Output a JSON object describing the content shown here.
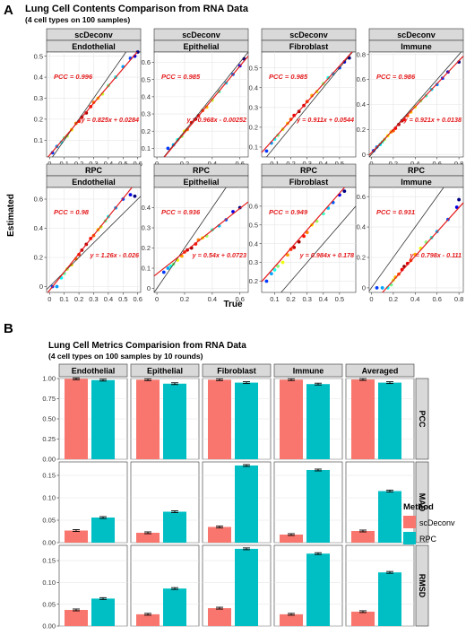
{
  "panelA": {
    "label": "A",
    "title": "Lung Cell Contents Comparison from RNA Data",
    "subtitle": "(4 cell types on 100 samples)",
    "xlabel": "True",
    "ylabel": "Estimated"
  },
  "panelB": {
    "label": "B",
    "title": "Lung Cell Metrics Comparision from RNA Data",
    "subtitle": "(4 cell types on 100 samples by 10 rounds)"
  },
  "legend": {
    "title": "Method",
    "items": [
      {
        "label": "scDeconv",
        "color": "#F8766D"
      },
      {
        "label": "RPC",
        "color": "#00BFC4"
      }
    ]
  },
  "chart_data": [
    {
      "type": "scatter",
      "method": "scDeconv",
      "cell_type": "Endothelial",
      "x_ticks": [
        0,
        0.1,
        0.2,
        0.3,
        0.4,
        0.5,
        0.6
      ],
      "y_ticks": [
        0.1,
        0.2,
        0.3,
        0.4,
        0.5
      ],
      "xlim": [
        -0.02,
        0.62
      ],
      "ylim": [
        0.02,
        0.52
      ],
      "pcc": "PCC = 0.996",
      "equation": "y = 0.825x + 0.0284",
      "fit": {
        "slope": 0.825,
        "intercept": 0.0284
      },
      "points": [
        [
          0.02,
          0.04
        ],
        [
          0.05,
          0.07
        ],
        [
          0.08,
          0.09
        ],
        [
          0.1,
          0.11
        ],
        [
          0.12,
          0.12
        ],
        [
          0.15,
          0.15
        ],
        [
          0.18,
          0.18
        ],
        [
          0.2,
          0.19
        ],
        [
          0.22,
          0.21
        ],
        [
          0.25,
          0.23
        ],
        [
          0.28,
          0.26
        ],
        [
          0.3,
          0.28
        ],
        [
          0.33,
          0.3
        ],
        [
          0.36,
          0.32
        ],
        [
          0.4,
          0.36
        ],
        [
          0.45,
          0.4
        ],
        [
          0.5,
          0.45
        ],
        [
          0.55,
          0.49
        ],
        [
          0.58,
          0.5
        ],
        [
          0.6,
          0.52
        ]
      ]
    },
    {
      "type": "scatter",
      "method": "scDeconv",
      "cell_type": "Epithelial",
      "x_ticks": [
        0,
        0.2,
        0.4,
        0.6
      ],
      "y_ticks": [
        0.1,
        0.2,
        0.3,
        0.4,
        0.5,
        0.6
      ],
      "xlim": [
        -0.02,
        0.66
      ],
      "ylim": [
        0.05,
        0.66
      ],
      "pcc": "PCC = 0.985",
      "equation": "y = 0.968x - 0.00252",
      "fit": {
        "slope": 0.968,
        "intercept": -0.00252
      },
      "points": [
        [
          0.08,
          0.1
        ],
        [
          0.12,
          0.12
        ],
        [
          0.15,
          0.15
        ],
        [
          0.18,
          0.17
        ],
        [
          0.2,
          0.2
        ],
        [
          0.22,
          0.21
        ],
        [
          0.25,
          0.25
        ],
        [
          0.28,
          0.27
        ],
        [
          0.3,
          0.29
        ],
        [
          0.33,
          0.32
        ],
        [
          0.36,
          0.34
        ],
        [
          0.4,
          0.38
        ],
        [
          0.45,
          0.43
        ],
        [
          0.5,
          0.48
        ],
        [
          0.55,
          0.53
        ],
        [
          0.6,
          0.58
        ],
        [
          0.63,
          0.62
        ]
      ]
    },
    {
      "type": "scatter",
      "method": "scDeconv",
      "cell_type": "Fibroblast",
      "x_ticks": [
        0.1,
        0.2,
        0.3,
        0.4,
        0.5
      ],
      "y_ticks": [
        0.1,
        0.2,
        0.3,
        0.4,
        0.5
      ],
      "xlim": [
        0.02,
        0.6
      ],
      "ylim": [
        0.05,
        0.58
      ],
      "pcc": "PCC = 0.985",
      "equation": "y = 0.911x + 0.0544",
      "fit": {
        "slope": 0.911,
        "intercept": 0.0544
      },
      "points": [
        [
          0.05,
          0.08
        ],
        [
          0.08,
          0.12
        ],
        [
          0.1,
          0.14
        ],
        [
          0.12,
          0.16
        ],
        [
          0.15,
          0.19
        ],
        [
          0.18,
          0.22
        ],
        [
          0.2,
          0.24
        ],
        [
          0.22,
          0.26
        ],
        [
          0.25,
          0.28
        ],
        [
          0.28,
          0.31
        ],
        [
          0.3,
          0.33
        ],
        [
          0.33,
          0.36
        ],
        [
          0.36,
          0.38
        ],
        [
          0.4,
          0.42
        ],
        [
          0.43,
          0.45
        ],
        [
          0.46,
          0.47
        ],
        [
          0.5,
          0.5
        ],
        [
          0.53,
          0.53
        ],
        [
          0.56,
          0.55
        ]
      ]
    },
    {
      "type": "scatter",
      "method": "scDeconv",
      "cell_type": "Immune",
      "x_ticks": [
        0,
        0.2,
        0.4,
        0.6,
        0.8
      ],
      "y_ticks": [
        0,
        0.2,
        0.4,
        0.6,
        0.8
      ],
      "xlim": [
        -0.02,
        0.84
      ],
      "ylim": [
        -0.02,
        0.82
      ],
      "pcc": "PCC = 0.986",
      "equation": "y = 0.921x + 0.0138",
      "fit": {
        "slope": 0.921,
        "intercept": 0.0138
      },
      "points": [
        [
          0.02,
          0.03
        ],
        [
          0.05,
          0.06
        ],
        [
          0.08,
          0.08
        ],
        [
          0.1,
          0.1
        ],
        [
          0.12,
          0.12
        ],
        [
          0.15,
          0.15
        ],
        [
          0.18,
          0.18
        ],
        [
          0.2,
          0.19
        ],
        [
          0.22,
          0.21
        ],
        [
          0.25,
          0.24
        ],
        [
          0.28,
          0.27
        ],
        [
          0.3,
          0.28
        ],
        [
          0.33,
          0.31
        ],
        [
          0.36,
          0.34
        ],
        [
          0.4,
          0.38
        ],
        [
          0.45,
          0.43
        ],
        [
          0.5,
          0.47
        ],
        [
          0.55,
          0.52
        ],
        [
          0.6,
          0.56
        ],
        [
          0.65,
          0.61
        ],
        [
          0.7,
          0.66
        ],
        [
          0.8,
          0.74
        ]
      ]
    },
    {
      "type": "scatter",
      "method": "RPC",
      "cell_type": "Endothelial",
      "x_ticks": [
        0,
        0.1,
        0.2,
        0.3,
        0.4,
        0.5,
        0.6
      ],
      "y_ticks": [
        0,
        0.2,
        0.4,
        0.6
      ],
      "xlim": [
        -0.02,
        0.62
      ],
      "ylim": [
        -0.04,
        0.68
      ],
      "pcc": "PCC = 0.98",
      "equation": "y = 1.26x - 0.026",
      "fit": {
        "slope": 1.26,
        "intercept": -0.026
      },
      "points": [
        [
          0.02,
          0
        ],
        [
          0.05,
          0
        ],
        [
          0.08,
          0.06
        ],
        [
          0.1,
          0.09
        ],
        [
          0.12,
          0.12
        ],
        [
          0.15,
          0.15
        ],
        [
          0.18,
          0.19
        ],
        [
          0.2,
          0.22
        ],
        [
          0.22,
          0.25
        ],
        [
          0.25,
          0.29
        ],
        [
          0.28,
          0.33
        ],
        [
          0.3,
          0.35
        ],
        [
          0.33,
          0.39
        ],
        [
          0.35,
          0.41
        ],
        [
          0.38,
          0.45
        ],
        [
          0.4,
          0.48
        ],
        [
          0.45,
          0.54
        ],
        [
          0.5,
          0.6
        ],
        [
          0.55,
          0.63
        ],
        [
          0.58,
          0.62
        ]
      ]
    },
    {
      "type": "scatter",
      "method": "RPC",
      "cell_type": "Epithelial",
      "x_ticks": [
        0,
        0.2,
        0.4,
        0.6
      ],
      "y_ticks": [
        0.0,
        0.1,
        0.2,
        0.3,
        0.4
      ],
      "xlim": [
        -0.02,
        0.66
      ],
      "ylim": [
        -0.02,
        0.5
      ],
      "pcc": "PCC = 0.936",
      "equation": "y = 0.54x + 0.0723",
      "fit": {
        "slope": 0.54,
        "intercept": 0.0723
      },
      "points": [
        [
          0.05,
          0.08
        ],
        [
          0.08,
          0.1
        ],
        [
          0.1,
          0.11
        ],
        [
          0.12,
          0.12
        ],
        [
          0.15,
          0.14
        ],
        [
          0.18,
          0.16
        ],
        [
          0.2,
          0.18
        ],
        [
          0.22,
          0.19
        ],
        [
          0.25,
          0.2
        ],
        [
          0.28,
          0.22
        ],
        [
          0.3,
          0.24
        ],
        [
          0.33,
          0.25
        ],
        [
          0.36,
          0.26
        ],
        [
          0.4,
          0.29
        ],
        [
          0.45,
          0.31
        ],
        [
          0.5,
          0.34
        ],
        [
          0.55,
          0.38
        ],
        [
          0.6,
          0.4
        ]
      ]
    },
    {
      "type": "scatter",
      "method": "RPC",
      "cell_type": "Fibroblast",
      "x_ticks": [
        0.1,
        0.2,
        0.3,
        0.4,
        0.5
      ],
      "y_ticks": [
        0.2,
        0.3,
        0.4,
        0.5,
        0.6
      ],
      "xlim": [
        0.02,
        0.6
      ],
      "ylim": [
        0.14,
        0.7
      ],
      "pcc": "PCC = 0.949",
      "equation": "y = 0.984x + 0.178",
      "fit": {
        "slope": 0.984,
        "intercept": 0.178
      },
      "points": [
        [
          0.05,
          0.2
        ],
        [
          0.08,
          0.24
        ],
        [
          0.1,
          0.26
        ],
        [
          0.12,
          0.28
        ],
        [
          0.15,
          0.3
        ],
        [
          0.18,
          0.34
        ],
        [
          0.2,
          0.37
        ],
        [
          0.22,
          0.38
        ],
        [
          0.25,
          0.41
        ],
        [
          0.28,
          0.44
        ],
        [
          0.3,
          0.46
        ],
        [
          0.33,
          0.5
        ],
        [
          0.36,
          0.52
        ],
        [
          0.4,
          0.56
        ],
        [
          0.43,
          0.59
        ],
        [
          0.46,
          0.62
        ],
        [
          0.5,
          0.66
        ],
        [
          0.53,
          0.68
        ]
      ]
    },
    {
      "type": "scatter",
      "method": "RPC",
      "cell_type": "Immune",
      "x_ticks": [
        0,
        0.2,
        0.4,
        0.6,
        0.8
      ],
      "y_ticks": [
        0,
        0.2,
        0.4,
        0.6
      ],
      "xlim": [
        -0.02,
        0.84
      ],
      "ylim": [
        -0.03,
        0.66
      ],
      "pcc": "PCC = 0.931",
      "equation": "y = 0.798x - 0.111",
      "fit": {
        "slope": 0.798,
        "intercept": -0.111
      },
      "points": [
        [
          0.05,
          0
        ],
        [
          0.1,
          0
        ],
        [
          0.15,
          0
        ],
        [
          0.18,
          0.02
        ],
        [
          0.2,
          0.05
        ],
        [
          0.22,
          0.07
        ],
        [
          0.25,
          0.09
        ],
        [
          0.28,
          0.12
        ],
        [
          0.3,
          0.14
        ],
        [
          0.33,
          0.16
        ],
        [
          0.36,
          0.18
        ],
        [
          0.4,
          0.22
        ],
        [
          0.45,
          0.26
        ],
        [
          0.5,
          0.3
        ],
        [
          0.55,
          0.33
        ],
        [
          0.6,
          0.37
        ],
        [
          0.7,
          0.45
        ],
        [
          0.78,
          0.53
        ],
        [
          0.8,
          0.58
        ]
      ]
    },
    {
      "type": "bar",
      "facet_columns": [
        "Endothelial",
        "Epithelial",
        "Fibroblast",
        "Immune",
        "Averaged"
      ],
      "facet_rows": [
        "PCC",
        "MAD",
        "RMSD"
      ],
      "series": [
        {
          "name": "scDeconv",
          "color": "#F8766D",
          "values": {
            "PCC": [
              0.996,
              0.985,
              0.985,
              0.986,
              0.988
            ],
            "MAD": [
              0.027,
              0.022,
              0.035,
              0.018,
              0.026
            ],
            "RMSD": [
              0.037,
              0.027,
              0.041,
              0.027,
              0.033
            ]
          }
        },
        {
          "name": "RPC",
          "color": "#00BFC4",
          "values": {
            "PCC": [
              0.98,
              0.936,
              0.949,
              0.931,
              0.949
            ],
            "MAD": [
              0.056,
              0.069,
              0.172,
              0.162,
              0.115
            ],
            "RMSD": [
              0.063,
              0.086,
              0.177,
              0.166,
              0.123
            ]
          }
        }
      ],
      "row_axes": {
        "PCC": {
          "ylim": [
            0,
            1.0
          ],
          "ticks": [
            "0.00",
            "0.25",
            "0.50",
            "0.75",
            "1.00"
          ],
          "tick_values": [
            0,
            0.25,
            0.5,
            0.75,
            1.0
          ]
        },
        "MAD": {
          "ylim": [
            0,
            0.18
          ],
          "ticks": [
            "0.00",
            "0.05",
            "0.10",
            "0.15"
          ],
          "tick_values": [
            0,
            0.05,
            0.1,
            0.15
          ]
        },
        "RMSD": {
          "ylim": [
            0,
            0.185
          ],
          "ticks": [
            "0.00",
            "0.05",
            "0.10",
            "0.15"
          ],
          "tick_values": [
            0,
            0.05,
            0.1,
            0.15
          ]
        }
      },
      "legend_position": "right"
    }
  ]
}
